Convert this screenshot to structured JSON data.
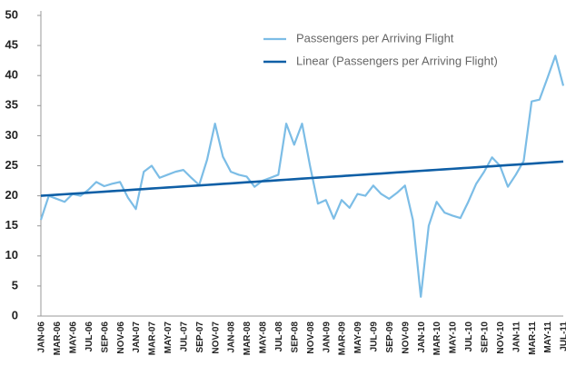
{
  "chart_data": {
    "type": "line",
    "categories": [
      "JAN-06",
      null,
      "MAR-06",
      null,
      "MAY-06",
      null,
      "JUL-06",
      null,
      "SEP-06",
      null,
      "NOV-06",
      null,
      "JAN-07",
      null,
      "MAR-07",
      null,
      "MAY-07",
      null,
      "JUL-07",
      null,
      "SEP-07",
      null,
      "NOV-07",
      null,
      "JAN-08",
      null,
      "MAR-08",
      null,
      "MAY-08",
      null,
      "JUL-08",
      null,
      "SEP-08",
      null,
      "NOV-08",
      null,
      "JAN-09",
      null,
      "MAR-09",
      null,
      "MAY-09",
      null,
      "JUL-09",
      null,
      "SEP-09",
      null,
      "NOV-09",
      null,
      "JAN-10",
      null,
      "MAR-10",
      null,
      "MAY-10",
      null,
      "JUL-10",
      null,
      "SEP-10",
      null,
      "NOV-10",
      null,
      "JAN-11",
      null,
      "MAR-11",
      null,
      "MAY-11",
      null,
      "JUL-11"
    ],
    "series": [
      {
        "name": "Passengers per Arriving Flight",
        "color": "#7cbde6",
        "values": [
          16,
          20,
          19.5,
          19,
          20.3,
          20,
          21,
          22.3,
          21.6,
          22,
          22.3,
          19.7,
          17.8,
          24,
          25,
          23,
          23.5,
          24,
          24.3,
          23,
          21.8,
          26,
          32,
          26.5,
          24,
          23.5,
          23.2,
          21.5,
          22.5,
          23,
          23.5,
          32,
          28.5,
          32,
          25,
          18.7,
          19.3,
          16.2,
          19.3,
          18,
          20.3,
          20,
          21.7,
          20.3,
          19.5,
          20.5,
          21.7,
          16,
          3.2,
          15,
          19,
          17.2,
          16.7,
          16.3,
          19,
          22,
          24,
          26.4,
          25,
          21.5,
          23.5,
          25.8,
          35.7,
          36,
          39.6,
          43.3,
          38.3
        ]
      },
      {
        "name": "Linear (Passengers per Arriving Flight)",
        "color": "#0f5fa6",
        "values": [
          20.0,
          20.09,
          20.17,
          20.26,
          20.35,
          20.43,
          20.52,
          20.6,
          20.69,
          20.78,
          20.86,
          20.95,
          21.04,
          21.12,
          21.21,
          21.3,
          21.38,
          21.47,
          21.55,
          21.64,
          21.73,
          21.81,
          21.9,
          21.99,
          22.07,
          22.16,
          22.25,
          22.33,
          22.42,
          22.5,
          22.59,
          22.68,
          22.76,
          22.85,
          22.94,
          23.02,
          23.11,
          23.2,
          23.28,
          23.37,
          23.45,
          23.54,
          23.63,
          23.71,
          23.8,
          23.89,
          23.97,
          24.06,
          24.15,
          24.23,
          24.32,
          24.4,
          24.49,
          24.58,
          24.66,
          24.75,
          24.84,
          24.92,
          25.01,
          25.1,
          25.18,
          25.27,
          25.35,
          25.44,
          25.53,
          25.61,
          25.7
        ]
      }
    ],
    "ylim": [
      0,
      50
    ],
    "yticks": [
      0,
      5,
      10,
      15,
      20,
      25,
      30,
      35,
      40,
      45,
      50
    ],
    "grid": false,
    "legend": "upper right"
  }
}
